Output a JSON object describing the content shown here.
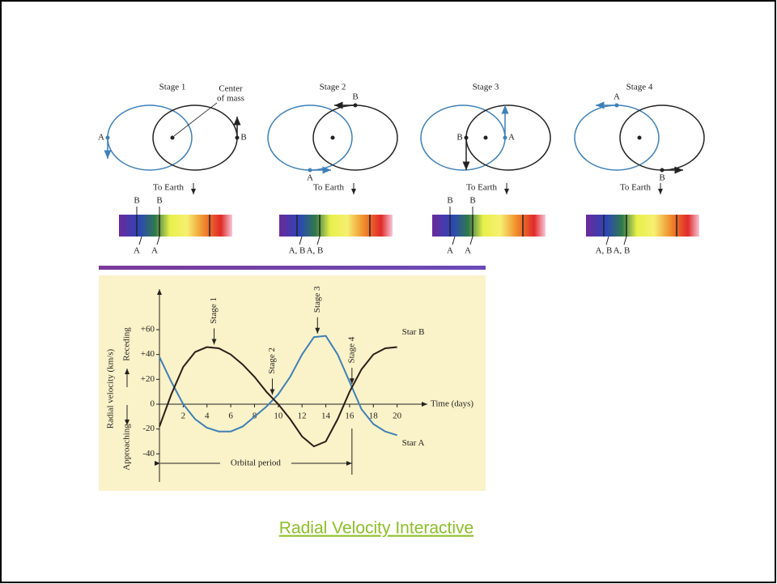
{
  "diagram": {
    "center_of_mass": [
      "Center",
      "of mass"
    ],
    "stages": [
      {
        "title": "Stage 1",
        "star_a": "A",
        "star_b": "B",
        "to_earth": "To Earth",
        "spectrum_top": [
          "B",
          "B"
        ],
        "spectrum_bottom": [
          "A",
          "A"
        ]
      },
      {
        "title": "Stage 2",
        "star_a": "A",
        "star_b": "B",
        "to_earth": "To Earth",
        "spectrum_top": [],
        "spectrum_bottom": [
          "A, B",
          "A, B"
        ]
      },
      {
        "title": "Stage 3",
        "star_a": "A",
        "star_b": "B",
        "to_earth": "To Earth",
        "spectrum_top": [
          "B",
          "B"
        ],
        "spectrum_bottom": [
          "A",
          "A"
        ]
      },
      {
        "title": "Stage 4",
        "star_a": "A",
        "star_b": "B",
        "to_earth": "To Earth",
        "spectrum_top": [],
        "spectrum_bottom": [
          "A, B",
          "A, B"
        ]
      }
    ]
  },
  "chart_data": {
    "type": "line",
    "x": [
      0,
      1,
      2,
      3,
      4,
      5,
      6,
      7,
      8,
      9,
      10,
      11,
      12,
      13,
      14,
      15,
      16,
      17,
      18,
      19,
      20
    ],
    "xlim": [
      0,
      22
    ],
    "ylim": [
      -60,
      90
    ],
    "xticks": [
      2,
      4,
      6,
      8,
      10,
      12,
      14,
      16,
      18,
      20
    ],
    "yticks": [
      {
        "value": 60,
        "label": "+60"
      },
      {
        "value": 40,
        "label": "+40"
      },
      {
        "value": 20,
        "label": "+20"
      },
      0,
      -20,
      -40
    ],
    "xlabel": "Time (days)",
    "ylabel": "Radial velocity (km/s)",
    "direction_labels": [
      "Approaching",
      "Receding"
    ],
    "series": [
      {
        "name": "Star A",
        "color": "#3d80b8",
        "values": [
          38,
          18,
          0,
          -12,
          -19,
          -22,
          -22,
          -18,
          -10,
          -2,
          8,
          22,
          40,
          54,
          55,
          40,
          18,
          -4,
          -16,
          -22,
          -25
        ]
      },
      {
        "name": "Star B",
        "color": "#2b1d1a",
        "values": [
          -18,
          8,
          30,
          42,
          46,
          45,
          40,
          32,
          22,
          10,
          0,
          -12,
          -26,
          -34,
          -30,
          -12,
          10,
          28,
          40,
          45,
          46
        ]
      }
    ],
    "annotations": [
      {
        "text": "Stage 1",
        "x": 4.6
      },
      {
        "text": "Stage 2",
        "x": 9.5
      },
      {
        "text": "Stage 3",
        "x": 13.3
      },
      {
        "text": "Stage 4",
        "x": 16.2
      }
    ],
    "period": {
      "label": "Orbital period",
      "from": 0,
      "to": 16.2
    }
  },
  "link": "Radial Velocity Interactive"
}
